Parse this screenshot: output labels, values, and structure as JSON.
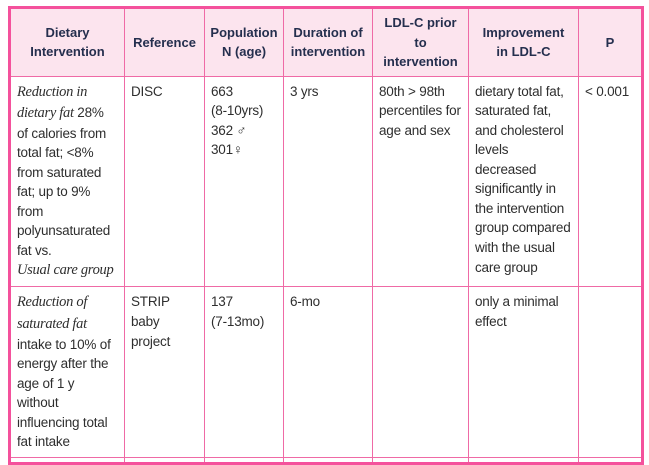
{
  "style": {
    "outer_border": "#f4519c",
    "grid_line": "#ef6aa6",
    "header_bg": "#fce4ee",
    "header_text": "#252f4e",
    "body_text": "#2e2e2e",
    "page_bg": "#ffffff"
  },
  "table": {
    "headers": [
      "Dietary\nIntervention",
      "Reference",
      "Population\nN (age)",
      "Duration of\nintervention",
      "LDL-C prior\nto\nintervention",
      "Improvement\nin LDL-C",
      "P"
    ],
    "rows": [
      {
        "cells": [
          {
            "segments": [
              {
                "text": "Reduction in dietary fat",
                "italic": true
              },
              {
                "text": " 28% of calories from total fat; <8% from saturated fat; up to 9% from polyunsaturated fat vs.",
                "italic": false
              },
              {
                "text": "Usual care group",
                "italic": true,
                "break_before": true
              }
            ]
          },
          {
            "text": "DISC"
          },
          {
            "text": "663\n(8-10yrs)\n362 ♂\n301♀"
          },
          {
            "text": "3 yrs"
          },
          {
            "text": "80th > 98th percentiles for age and sex"
          },
          {
            "text": "dietary total fat, saturated fat, and cholesterol levels decreased significantly in the intervention group compared with the usual care group"
          },
          {
            "text": "< 0.001"
          }
        ]
      },
      {
        "cells": [
          {
            "segments": [
              {
                "text": "Reduction of saturated fat",
                "italic": true
              },
              {
                "text": " intake to 10% of energy after the age of 1 y without influencing total fat intake",
                "italic": false
              }
            ]
          },
          {
            "text": "STRIP\nbaby\nproject"
          },
          {
            "text": "137\n(7-13mo)"
          },
          {
            "text": "6-mo"
          },
          {
            "text": ""
          },
          {
            "text": "only a minimal effect"
          },
          {
            "text": ""
          }
        ]
      },
      {
        "cells": [
          {
            "text": ""
          },
          {
            "text": ""
          },
          {
            "text": ""
          },
          {
            "text": ""
          },
          {
            "text": ""
          },
          {
            "text": ""
          },
          {
            "text": ""
          }
        ]
      }
    ]
  },
  "chart_data": {
    "type": "table",
    "columns": [
      "Dietary Intervention",
      "Reference",
      "Population N (age)",
      "Duration of intervention",
      "LDL-C prior to intervention",
      "Improvement in LDL-C",
      "P"
    ],
    "rows": [
      [
        "Reduction in dietary fat 28% of calories from total fat; <8% from saturated fat; up to 9% from polyunsaturated fat vs. Usual care group",
        "DISC",
        "663 (8-10yrs) 362 ♂ 301♀",
        "3 yrs",
        "80th > 98th percentiles for age and sex",
        "dietary total fat, saturated fat, and cholesterol levels decreased significantly in the intervention group compared with the usual care group",
        "< 0.001"
      ],
      [
        "Reduction of saturated fat intake to 10% of energy after the age of 1 y without influencing total fat intake",
        "STRIP baby project",
        "137 (7-13mo)",
        "6-mo",
        "",
        "only a minimal effect",
        ""
      ]
    ]
  }
}
